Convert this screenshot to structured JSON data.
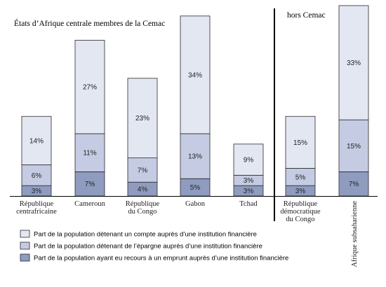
{
  "chart_data": {
    "type": "bar",
    "stacked": true,
    "title": "États d’Afrique centrale membres de la Cemac",
    "group_label_outside": "hors Cemac",
    "categories": [
      "République centrafricaine",
      "Cameroun",
      "République du Congo",
      "Gabon",
      "Tchad",
      "République démocratique du Congo",
      "Afrique subsaharienne"
    ],
    "category_lines": [
      [
        "République",
        "centrafricaine"
      ],
      [
        "Cameroun"
      ],
      [
        "République",
        "du Congo"
      ],
      [
        "Gabon"
      ],
      [
        "Tchad"
      ],
      [
        "République",
        "démocratique",
        "du Congo"
      ],
      [
        "Afrique subsaharienne"
      ]
    ],
    "rotated_category_index": 6,
    "series": [
      {
        "name": "Part de la population ayant eu recours à un emprunt auprès d’une institution financière",
        "values": [
          3,
          7,
          4,
          5,
          3,
          3,
          7
        ],
        "labels": [
          "3%",
          "7%",
          "4%",
          "5%",
          "3%",
          "3%",
          "7%"
        ],
        "color": "#8f9cc0"
      },
      {
        "name": "Part de la population détenant de l’épargne auprès d’une institution financière",
        "values": [
          6,
          11,
          7,
          13,
          3,
          5,
          15
        ],
        "labels": [
          "6%",
          "11%",
          "7%",
          "13%",
          "3%",
          "5%",
          "15%"
        ],
        "color": "#c5cbe2"
      },
      {
        "name": "Part de la population détenant un compte auprès d’une institution financière",
        "values": [
          14,
          27,
          23,
          34,
          9,
          15,
          33
        ],
        "labels": [
          "14%",
          "27%",
          "23%",
          "34%",
          "9%",
          "15%",
          "33%"
        ],
        "color": "#e3e7f2"
      }
    ],
    "legend_order": [
      2,
      1,
      0
    ],
    "cemac_count": 5,
    "ylim": [
      0,
      55
    ],
    "grid": false,
    "legend_position": "bottom-left"
  }
}
